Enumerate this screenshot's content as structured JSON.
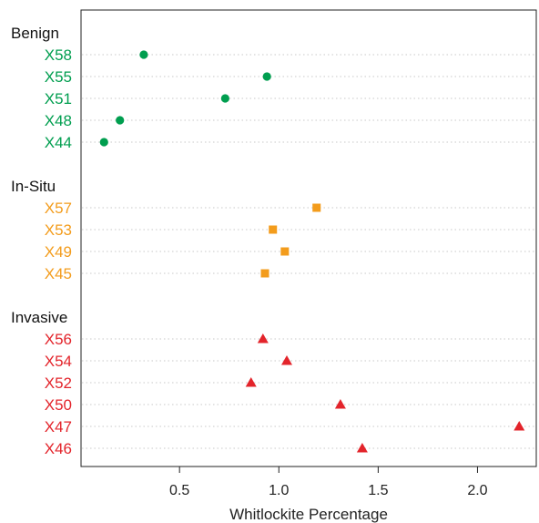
{
  "chart_data": {
    "type": "scatter",
    "title": "",
    "xlabel": "Whitlockite Percentage",
    "ylabel": "",
    "xlim": [
      0.05,
      2.25
    ],
    "x_ticks": [
      "0.5",
      "1.0",
      "1.5",
      "2.0"
    ],
    "grid": "dotted horizontal guide per row",
    "legend": "none",
    "groups": [
      {
        "name": "Benign",
        "color": "#009E4F",
        "marker": "circle",
        "points": [
          {
            "label": "X58",
            "x": 0.32
          },
          {
            "label": "X55",
            "x": 0.94
          },
          {
            "label": "X51",
            "x": 0.73
          },
          {
            "label": "X48",
            "x": 0.2
          },
          {
            "label": "X44",
            "x": 0.12
          }
        ]
      },
      {
        "name": "In-Situ",
        "color": "#F39C1C",
        "marker": "square",
        "points": [
          {
            "label": "X57",
            "x": 1.19
          },
          {
            "label": "X53",
            "x": 0.97
          },
          {
            "label": "X49",
            "x": 1.03
          },
          {
            "label": "X45",
            "x": 0.93
          }
        ]
      },
      {
        "name": "Invasive",
        "color": "#E3242B",
        "marker": "triangle",
        "points": [
          {
            "label": "X56",
            "x": 0.92
          },
          {
            "label": "X54",
            "x": 1.04
          },
          {
            "label": "X52",
            "x": 0.86
          },
          {
            "label": "X50",
            "x": 1.31
          },
          {
            "label": "X47",
            "x": 2.21
          },
          {
            "label": "X46",
            "x": 1.42
          }
        ]
      }
    ]
  }
}
